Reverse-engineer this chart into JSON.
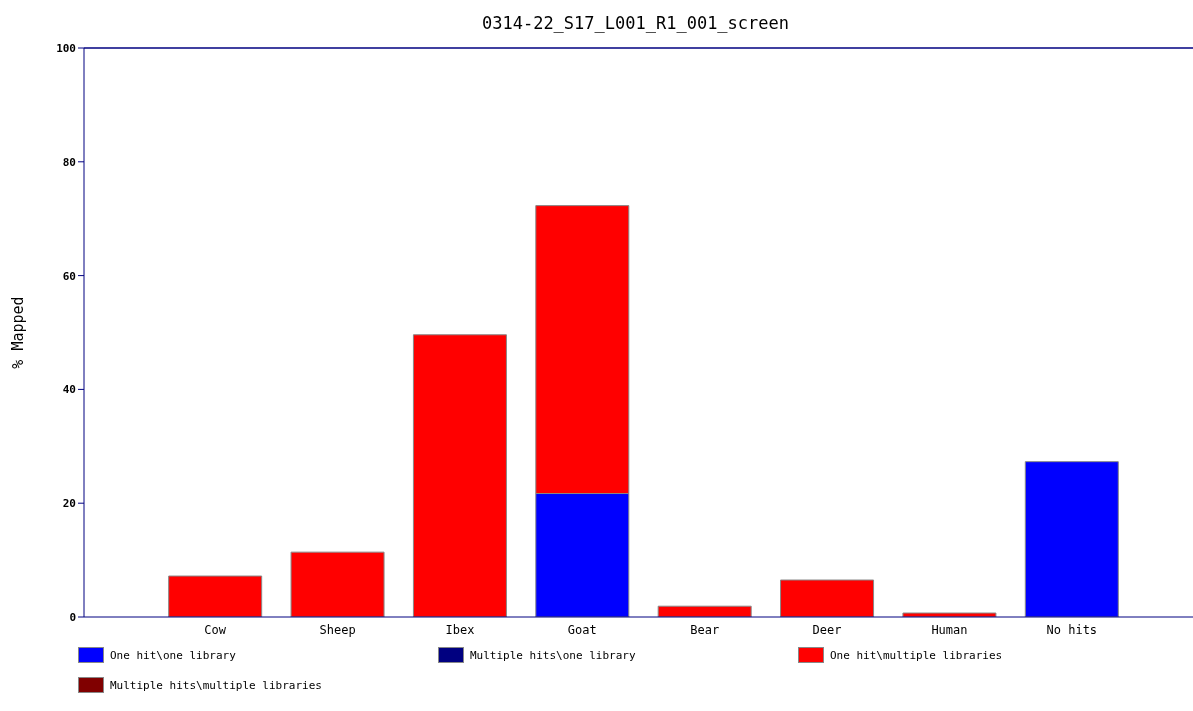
{
  "chart_data": {
    "type": "bar",
    "title": "0314-22_S17_L001_R1_001_screen",
    "ylabel": "% Mapped",
    "categories": [
      "Cow",
      "Sheep",
      "Ibex",
      "Goat",
      "Bear",
      "Deer",
      "Human",
      "No hits"
    ],
    "stacked": true,
    "ylim": [
      0,
      100
    ],
    "yticks": [
      0,
      20,
      40,
      60,
      80,
      100
    ],
    "grid": false,
    "legend": "bottom",
    "series": [
      {
        "name": "One hit\\one library",
        "color": "#0000ff",
        "values": [
          0,
          0,
          0,
          21.7,
          0,
          0,
          0,
          27.3
        ]
      },
      {
        "name": "Multiple hits\\one library",
        "color": "#000080",
        "values": [
          0,
          0,
          0,
          0,
          0,
          0,
          0,
          0
        ]
      },
      {
        "name": "One hit\\multiple libraries",
        "color": "#ff0000",
        "values": [
          7.2,
          11.4,
          49.6,
          50.6,
          1.9,
          6.5,
          0.7,
          0
        ]
      },
      {
        "name": "Multiple hits\\multiple libraries",
        "color": "#800000",
        "values": [
          0,
          0,
          0,
          0,
          0,
          0,
          0,
          0
        ]
      }
    ]
  }
}
